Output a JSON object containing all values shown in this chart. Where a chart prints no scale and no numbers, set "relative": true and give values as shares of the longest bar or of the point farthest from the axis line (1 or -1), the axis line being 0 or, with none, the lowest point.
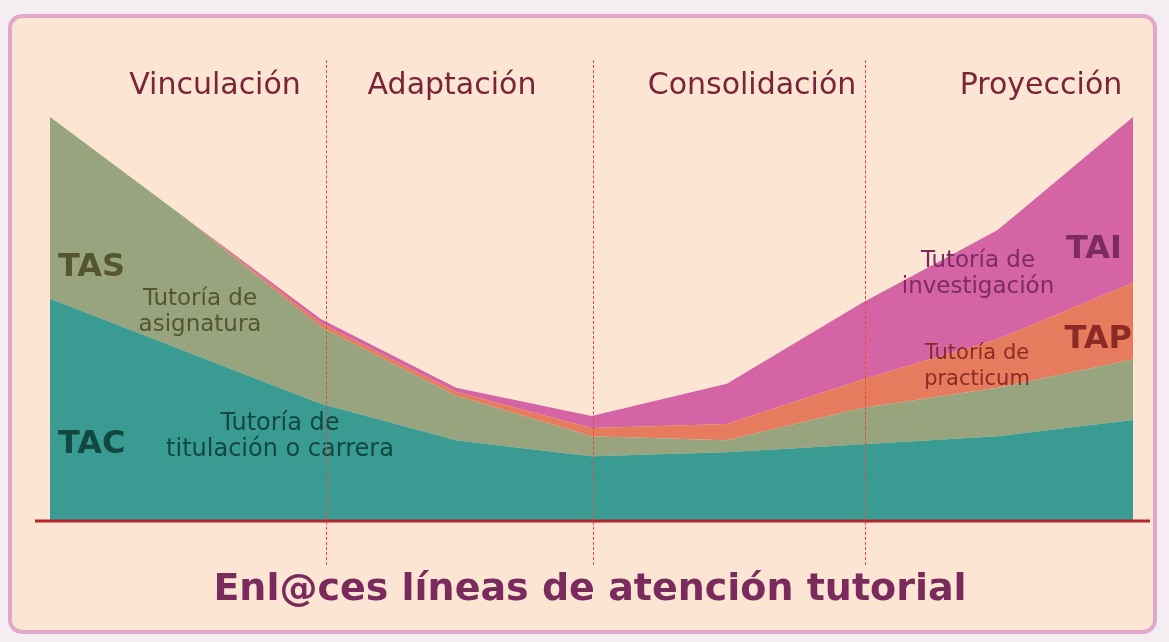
{
  "chart_data": {
    "type": "area",
    "title": "Enl@ces líneas de atención tutorial",
    "relative": true,
    "stacked": true,
    "marker": "none",
    "categories": [
      null,
      null,
      null,
      null,
      null,
      null,
      null,
      null,
      null
    ],
    "series": [
      {
        "name": "TAC",
        "color": "#3a9b93",
        "values": [
          0.55,
          0.42,
          0.29,
          0.2,
          0.16,
          0.17,
          0.19,
          0.21,
          0.25
        ]
      },
      {
        "name": "TAS",
        "color": "#98a47e",
        "values": [
          0.45,
          0.33,
          0.19,
          0.11,
          0.05,
          0.03,
          0.09,
          0.12,
          0.15
        ]
      },
      {
        "name": "TAP",
        "color": "#e67b5d",
        "values": [
          0,
          0,
          0.01,
          0.01,
          0.02,
          0.04,
          0.07,
          0.12,
          0.19
        ]
      },
      {
        "name": "TAI",
        "color": "#d464a4",
        "values": [
          0,
          0,
          0.01,
          0.01,
          0.03,
          0.1,
          0.19,
          0.27,
          0.41
        ]
      }
    ],
    "annotations": [
      "Vinculación",
      "Adaptación",
      "Consolidación",
      "Proyección",
      "Tutoría de\nasignatura",
      "Tutoría de\ntitulación o carrera",
      "Tutoría de\ninvestigación",
      "Tutoría de\npracticum"
    ]
  }
}
